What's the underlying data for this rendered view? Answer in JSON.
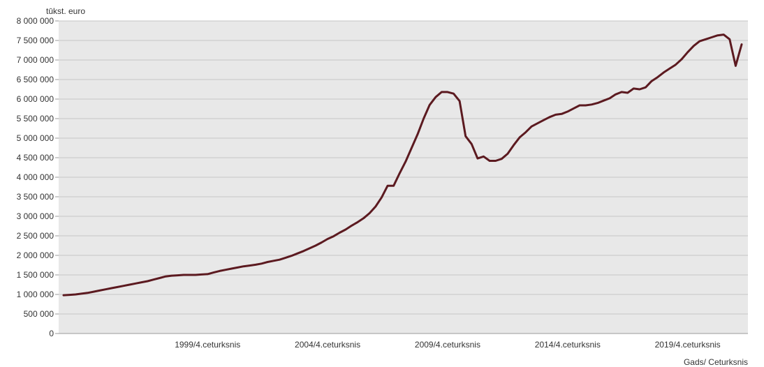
{
  "chart_data": {
    "type": "line",
    "ylabel": "tūkst. euro",
    "xlabel": "Gads/ Ceturksnis",
    "ylim": [
      0,
      8000000
    ],
    "y_ticks": [
      {
        "value": 0,
        "label": "0"
      },
      {
        "value": 500000,
        "label": "500 000"
      },
      {
        "value": 1000000,
        "label": "1 000 000"
      },
      {
        "value": 1500000,
        "label": "1 500 000"
      },
      {
        "value": 2000000,
        "label": "2 000 000"
      },
      {
        "value": 2500000,
        "label": "2 500 000"
      },
      {
        "value": 3000000,
        "label": "3 000 000"
      },
      {
        "value": 3500000,
        "label": "3 500 000"
      },
      {
        "value": 4000000,
        "label": "4 000 000"
      },
      {
        "value": 4500000,
        "label": "4 500 000"
      },
      {
        "value": 5000000,
        "label": "5 000 000"
      },
      {
        "value": 5500000,
        "label": "5 500 000"
      },
      {
        "value": 6000000,
        "label": "6 000 000"
      },
      {
        "value": 6500000,
        "label": "6 500 000"
      },
      {
        "value": 7000000,
        "label": "7 000 000"
      },
      {
        "value": 7500000,
        "label": "7 500 000"
      },
      {
        "value": 8000000,
        "label": "8 000 000"
      }
    ],
    "x_ticks": [
      {
        "index": 24,
        "label": "1999/4.ceturksnis"
      },
      {
        "index": 44,
        "label": "2004/4.ceturksnis"
      },
      {
        "index": 64,
        "label": "2009/4.ceturksnis"
      },
      {
        "index": 84,
        "label": "2014/4.ceturksnis"
      },
      {
        "index": 104,
        "label": "2019/4.ceturksnis"
      }
    ],
    "grid": true,
    "background": "#e8e8e8",
    "line_color": "#5c1a20",
    "series": [
      {
        "values": [
          980000,
          990000,
          1000000,
          1020000,
          1040000,
          1070000,
          1100000,
          1130000,
          1160000,
          1190000,
          1220000,
          1250000,
          1280000,
          1310000,
          1340000,
          1380000,
          1420000,
          1460000,
          1480000,
          1490000,
          1500000,
          1500000,
          1500000,
          1510000,
          1520000,
          1560000,
          1600000,
          1630000,
          1660000,
          1690000,
          1720000,
          1740000,
          1760000,
          1790000,
          1830000,
          1860000,
          1890000,
          1940000,
          1990000,
          2050000,
          2110000,
          2180000,
          2250000,
          2330000,
          2420000,
          2490000,
          2580000,
          2660000,
          2760000,
          2850000,
          2950000,
          3080000,
          3250000,
          3480000,
          3780000,
          3780000,
          4100000,
          4400000,
          4750000,
          5100000,
          5500000,
          5850000,
          6050000,
          6180000,
          6180000,
          6140000,
          5950000,
          5050000,
          4850000,
          4480000,
          4530000,
          4420000,
          4420000,
          4470000,
          4600000,
          4820000,
          5020000,
          5150000,
          5300000,
          5380000,
          5460000,
          5540000,
          5600000,
          5620000,
          5680000,
          5760000,
          5840000,
          5840000,
          5860000,
          5900000,
          5960000,
          6020000,
          6120000,
          6180000,
          6160000,
          6270000,
          6250000,
          6300000,
          6460000,
          6560000,
          6680000,
          6780000,
          6880000,
          7020000,
          7200000,
          7360000,
          7480000,
          7530000,
          7580000,
          7630000,
          7650000,
          7530000,
          6850000,
          7400000
        ]
      }
    ]
  }
}
